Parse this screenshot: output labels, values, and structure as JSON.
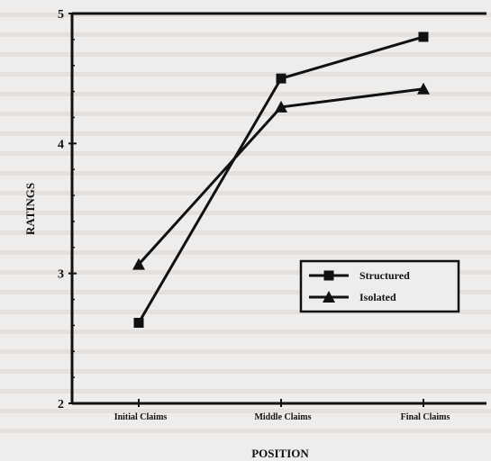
{
  "chart_data": {
    "type": "line",
    "categories": [
      "Initial Claims",
      "Middle Claims",
      "Final Claims"
    ],
    "series": [
      {
        "name": "Structured",
        "values": [
          2.62,
          4.5,
          4.82
        ],
        "marker": "square"
      },
      {
        "name": "Isolated",
        "values": [
          3.07,
          4.28,
          4.42
        ],
        "marker": "triangle"
      }
    ],
    "xlabel": "POSITION",
    "ylabel": "RATINGS",
    "ylim": [
      2,
      5
    ],
    "yticks": [
      "2",
      "3",
      "4",
      "5"
    ],
    "grid": false,
    "legend": "center-right",
    "colors": {
      "line": "#111111",
      "background": "#efedec",
      "faded_text": "#b5b2ad"
    }
  }
}
